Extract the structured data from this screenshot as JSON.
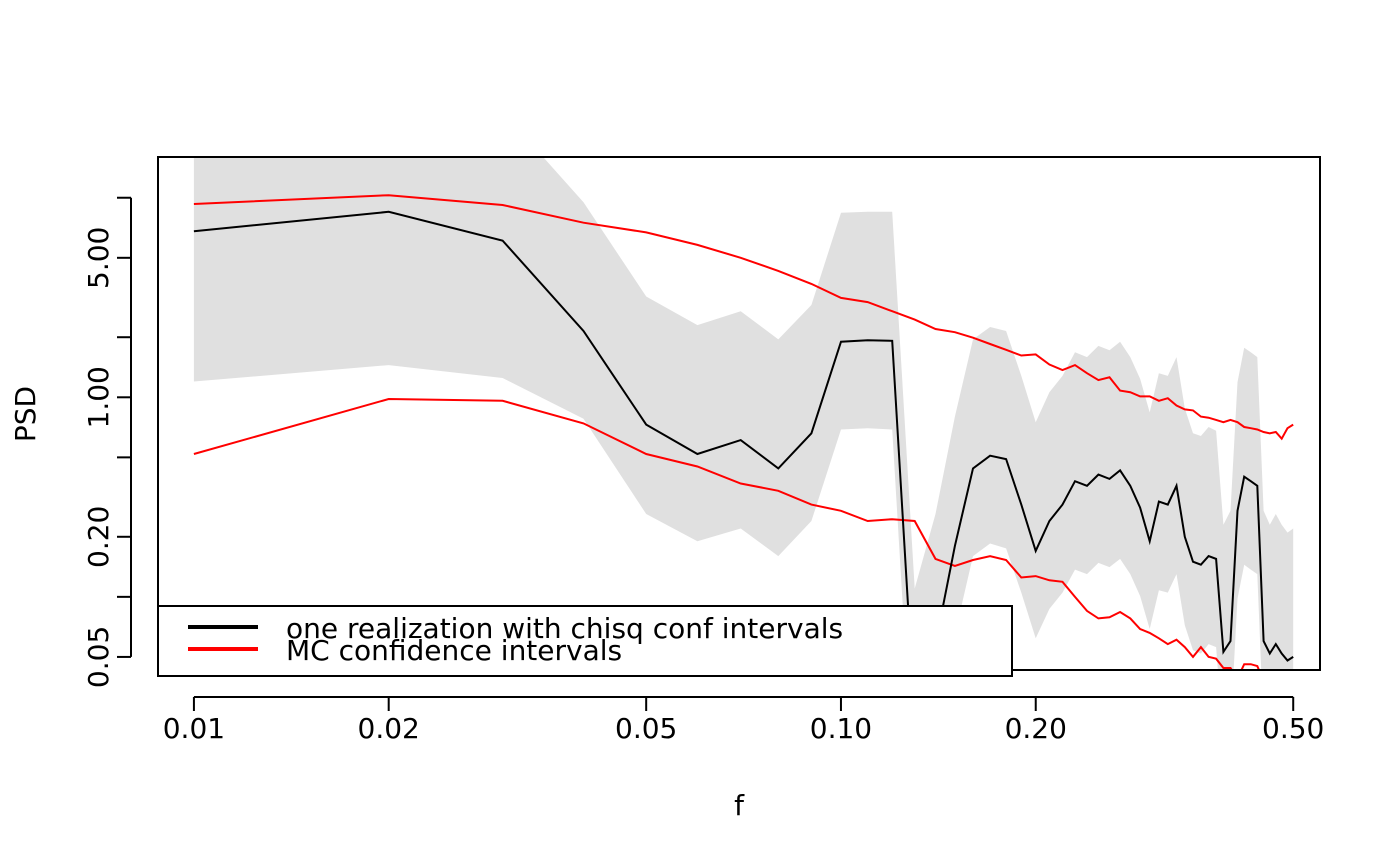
{
  "chart_data": {
    "type": "line",
    "title": "",
    "xlabel": "f",
    "ylabel": "PSD",
    "x_scale": "log",
    "y_scale": "log",
    "xlim": [
      0.0088,
      0.55
    ],
    "ylim": [
      0.043,
      16.0
    ],
    "grid": false,
    "legend_position": "bottom-left",
    "x_ticks": [
      0.01,
      0.02,
      0.05,
      0.1,
      0.2,
      0.5
    ],
    "x_tick_labels": [
      "0.01",
      "0.02",
      "0.05",
      "0.10",
      "0.20",
      "0.50"
    ],
    "y_ticks": [
      0.05,
      0.1,
      0.2,
      0.5,
      1.0,
      2.0,
      5.0,
      10.0
    ],
    "y_tick_labels": [
      "0.05",
      "",
      "0.20",
      "",
      "1.00",
      "",
      "5.00",
      ""
    ],
    "x": [
      0.01,
      0.02,
      0.03,
      0.04,
      0.05,
      0.06,
      0.07,
      0.08,
      0.09,
      0.1,
      0.11,
      0.12,
      0.13,
      0.14,
      0.15,
      0.16,
      0.17,
      0.18,
      0.19,
      0.2,
      0.21,
      0.22,
      0.23,
      0.24,
      0.25,
      0.26,
      0.27,
      0.28,
      0.29,
      0.3,
      0.31,
      0.32,
      0.33,
      0.34,
      0.35,
      0.36,
      0.37,
      0.38,
      0.39,
      0.4,
      0.41,
      0.42,
      0.43,
      0.44,
      0.45,
      0.46,
      0.47,
      0.48,
      0.49,
      0.5
    ],
    "series": [
      {
        "name": "one realization with chisq conf intervals",
        "color": "#000000",
        "values": [
          6.8,
          8.5,
          6.1,
          2.15,
          0.73,
          0.52,
          0.61,
          0.44,
          0.66,
          1.9,
          1.93,
          1.92,
          0.025,
          0.058,
          0.18,
          0.44,
          0.51,
          0.49,
          0.29,
          0.17,
          0.24,
          0.29,
          0.38,
          0.36,
          0.41,
          0.39,
          0.43,
          0.36,
          0.28,
          0.19,
          0.3,
          0.29,
          0.36,
          0.2,
          0.15,
          0.145,
          0.16,
          0.155,
          0.053,
          0.06,
          0.27,
          0.4,
          0.38,
          0.36,
          0.06,
          0.052,
          0.058,
          0.052,
          0.048,
          0.05
        ],
        "lower": [
          1.2,
          1.45,
          1.25,
          0.78,
          0.26,
          0.19,
          0.22,
          0.16,
          0.24,
          0.69,
          0.7,
          0.69,
          0.009,
          0.021,
          0.065,
          0.16,
          0.185,
          0.175,
          0.105,
          0.062,
          0.087,
          0.105,
          0.137,
          0.13,
          0.148,
          0.141,
          0.155,
          0.13,
          0.101,
          0.069,
          0.108,
          0.105,
          0.13,
          0.072,
          0.054,
          0.052,
          0.058,
          0.056,
          0.019,
          0.022,
          0.098,
          0.145,
          0.137,
          0.13,
          0.022,
          0.019,
          0.021,
          0.019,
          0.017,
          0.018
        ],
        "upper": [
          30,
          38,
          27,
          9.5,
          3.2,
          2.3,
          2.7,
          1.95,
          2.9,
          8.4,
          8.5,
          8.5,
          0.11,
          0.26,
          0.8,
          1.95,
          2.25,
          2.15,
          1.28,
          0.75,
          1.06,
          1.28,
          1.68,
          1.59,
          1.81,
          1.72,
          1.9,
          1.59,
          1.24,
          0.84,
          1.32,
          1.28,
          1.59,
          0.88,
          0.66,
          0.64,
          0.71,
          0.68,
          0.23,
          0.27,
          1.19,
          1.77,
          1.68,
          1.59,
          0.27,
          0.23,
          0.26,
          0.23,
          0.21,
          0.22
        ]
      },
      {
        "name": "MC confidence intervals",
        "color": "#ff0000",
        "upper": [
          9.3,
          10.3,
          9.2,
          7.5,
          6.7,
          5.8,
          5.0,
          4.3,
          3.7,
          3.15,
          3.0,
          2.7,
          2.45,
          2.2,
          2.12,
          1.99,
          1.85,
          1.73,
          1.62,
          1.64,
          1.46,
          1.37,
          1.45,
          1.32,
          1.22,
          1.26,
          1.08,
          1.06,
          1.01,
          1.01,
          0.96,
          0.99,
          0.91,
          0.87,
          0.86,
          0.8,
          0.79,
          0.77,
          0.75,
          0.77,
          0.75,
          0.71,
          0.7,
          0.69,
          0.67,
          0.66,
          0.67,
          0.62,
          0.7,
          0.73
        ],
        "lower": [
          0.52,
          0.98,
          0.96,
          0.74,
          0.52,
          0.45,
          0.37,
          0.34,
          0.29,
          0.27,
          0.24,
          0.245,
          0.24,
          0.155,
          0.143,
          0.153,
          0.16,
          0.153,
          0.125,
          0.127,
          0.121,
          0.119,
          0.1,
          0.085,
          0.078,
          0.079,
          0.084,
          0.078,
          0.069,
          0.066,
          0.062,
          0.058,
          0.061,
          0.056,
          0.05,
          0.056,
          0.05,
          0.049,
          0.044,
          0.044,
          0.039,
          0.046,
          0.046,
          0.045,
          0.038,
          0.037,
          0.036,
          0.035,
          0.036,
          0.037
        ]
      }
    ]
  }
}
